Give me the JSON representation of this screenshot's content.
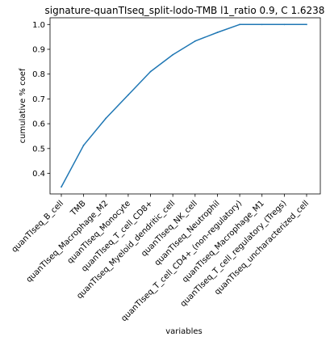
{
  "chart_data": {
    "type": "line",
    "title": "signature-quanTIseq_split-lodo-TMB l1_ratio 0.9, C 1.6238",
    "xlabel": "variables",
    "ylabel": "cumulative % coef",
    "categories": [
      "quanTIseq_B_cell",
      "TMB",
      "quanTIseq_Macrophage_M2",
      "quanTIseq_Monocyte",
      "quanTIseq_T_cell_CD8+",
      "quanTIseq_Myeloid_dendritic_cell",
      "quanTIseq_NK_cell",
      "quanTIseq_Neutrophil",
      "quanTIseq_T_cell_CD4+_(non-regulatory)",
      "quanTIseq_Macrophage_M1",
      "quanTIseq_T_cell_regulatory_(Tregs)",
      "quanTIseq_uncharacterized_cell"
    ],
    "series": [
      {
        "values": [
          0.345,
          0.513,
          0.622,
          0.716,
          0.81,
          0.878,
          0.933,
          0.968,
          1.0,
          1.0,
          1.0,
          1.0
        ]
      }
    ],
    "ylim": [
      0.317,
      1.027
    ],
    "yticks": [
      "0.4",
      "0.5",
      "0.6",
      "0.7",
      "0.8",
      "0.9",
      "1.0"
    ],
    "line_color": "#1f77b4",
    "grid": false,
    "legend": "none"
  }
}
